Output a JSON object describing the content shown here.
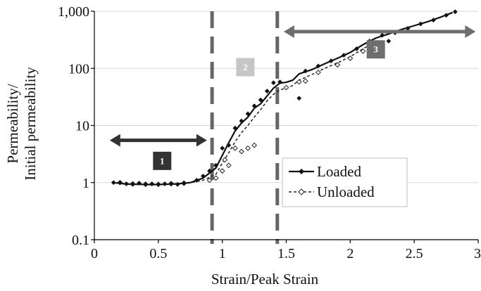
{
  "chart_data": {
    "type": "scatter",
    "title": "",
    "xlabel": "Strain/Peak Strain",
    "ylabel_lines": [
      "Permeability/",
      "Initial permeability"
    ],
    "xlim": [
      0,
      3
    ],
    "ylim": [
      0.1,
      1000
    ],
    "y_scale": "log",
    "x_ticks": [
      0,
      0.5,
      1,
      1.5,
      2,
      2.5,
      3
    ],
    "x_tick_labels": [
      "0",
      "0.5",
      "1",
      "1.5",
      "2",
      "2.5",
      "3"
    ],
    "y_ticks": [
      0.1,
      1,
      10,
      100,
      1000
    ],
    "y_tick_labels": [
      "0.1",
      "1",
      "10",
      "100",
      "1,000"
    ],
    "grid": "horizontal",
    "legend_position": "lower-right",
    "colors": {
      "loaded": "#111111",
      "unloaded": "#222222",
      "grid": "#d9d9d9",
      "divider": "#666666",
      "arrow_left": "#333333",
      "arrow_right": "#6e6e6e",
      "zone1": "#333333",
      "zone2": "#c6c6c6",
      "zone3": "#6e6e6e"
    },
    "series": [
      {
        "name": "Loaded",
        "style": "solid-line-filled-diamond",
        "line": [
          {
            "x": 0.15,
            "y": 1.0
          },
          {
            "x": 0.25,
            "y": 0.94
          },
          {
            "x": 0.35,
            "y": 0.93
          },
          {
            "x": 0.45,
            "y": 0.92
          },
          {
            "x": 0.55,
            "y": 0.93
          },
          {
            "x": 0.65,
            "y": 0.95
          },
          {
            "x": 0.75,
            "y": 1.0
          },
          {
            "x": 0.85,
            "y": 1.2
          },
          {
            "x": 0.95,
            "y": 1.8
          },
          {
            "x": 1.0,
            "y": 3.0
          },
          {
            "x": 1.05,
            "y": 5.0
          },
          {
            "x": 1.1,
            "y": 8.0
          },
          {
            "x": 1.15,
            "y": 11.0
          },
          {
            "x": 1.2,
            "y": 14.0
          },
          {
            "x": 1.25,
            "y": 20.0
          },
          {
            "x": 1.3,
            "y": 24.0
          },
          {
            "x": 1.35,
            "y": 33.0
          },
          {
            "x": 1.4,
            "y": 45.0
          },
          {
            "x": 1.45,
            "y": 55.0
          },
          {
            "x": 1.5,
            "y": 57.0
          },
          {
            "x": 1.55,
            "y": 62.0
          },
          {
            "x": 1.6,
            "y": 80.0
          },
          {
            "x": 1.7,
            "y": 95.0
          },
          {
            "x": 1.8,
            "y": 120.0
          },
          {
            "x": 1.9,
            "y": 150.0
          },
          {
            "x": 2.0,
            "y": 190.0
          },
          {
            "x": 2.1,
            "y": 260.0
          },
          {
            "x": 2.2,
            "y": 340.0
          },
          {
            "x": 2.3,
            "y": 400.0
          },
          {
            "x": 2.4,
            "y": 480.0
          },
          {
            "x": 2.5,
            "y": 560.0
          },
          {
            "x": 2.6,
            "y": 650.0
          },
          {
            "x": 2.7,
            "y": 780.0
          },
          {
            "x": 2.8,
            "y": 950.0
          }
        ],
        "points": [
          {
            "x": 0.15,
            "y": 1.0
          },
          {
            "x": 0.2,
            "y": 1.0
          },
          {
            "x": 0.25,
            "y": 0.95
          },
          {
            "x": 0.3,
            "y": 0.93
          },
          {
            "x": 0.35,
            "y": 0.98
          },
          {
            "x": 0.4,
            "y": 0.92
          },
          {
            "x": 0.45,
            "y": 0.95
          },
          {
            "x": 0.5,
            "y": 0.93
          },
          {
            "x": 0.55,
            "y": 0.95
          },
          {
            "x": 0.6,
            "y": 0.97
          },
          {
            "x": 0.65,
            "y": 0.93
          },
          {
            "x": 0.7,
            "y": 0.96
          },
          {
            "x": 0.8,
            "y": 1.1
          },
          {
            "x": 0.85,
            "y": 1.3
          },
          {
            "x": 0.9,
            "y": 1.6
          },
          {
            "x": 0.95,
            "y": 2.0
          },
          {
            "x": 1.0,
            "y": 4.0
          },
          {
            "x": 1.05,
            "y": 4.5
          },
          {
            "x": 1.1,
            "y": 9.0
          },
          {
            "x": 1.15,
            "y": 12.0
          },
          {
            "x": 1.2,
            "y": 16.0
          },
          {
            "x": 1.25,
            "y": 22.0
          },
          {
            "x": 1.3,
            "y": 28.0
          },
          {
            "x": 1.35,
            "y": 40.0
          },
          {
            "x": 1.4,
            "y": 56.0
          },
          {
            "x": 1.45,
            "y": 58.0
          },
          {
            "x": 1.6,
            "y": 30.0
          },
          {
            "x": 1.65,
            "y": 90.0
          },
          {
            "x": 1.75,
            "y": 110.0
          },
          {
            "x": 1.85,
            "y": 135.0
          },
          {
            "x": 1.95,
            "y": 170.0
          },
          {
            "x": 2.05,
            "y": 220.0
          },
          {
            "x": 2.15,
            "y": 300.0
          },
          {
            "x": 2.25,
            "y": 380.0
          },
          {
            "x": 2.3,
            "y": 300.0
          },
          {
            "x": 2.35,
            "y": 420.0
          },
          {
            "x": 2.45,
            "y": 500.0
          },
          {
            "x": 2.55,
            "y": 600.0
          },
          {
            "x": 2.65,
            "y": 700.0
          },
          {
            "x": 2.75,
            "y": 850.0
          },
          {
            "x": 2.82,
            "y": 980.0
          }
        ]
      },
      {
        "name": "Unloaded",
        "style": "dashed-line-open-diamond",
        "line": [
          {
            "x": 0.15,
            "y": 1.0
          },
          {
            "x": 0.25,
            "y": 0.95
          },
          {
            "x": 0.35,
            "y": 0.94
          },
          {
            "x": 0.45,
            "y": 0.93
          },
          {
            "x": 0.55,
            "y": 0.94
          },
          {
            "x": 0.65,
            "y": 0.96
          },
          {
            "x": 0.75,
            "y": 0.99
          },
          {
            "x": 0.85,
            "y": 1.1
          },
          {
            "x": 0.95,
            "y": 1.4
          },
          {
            "x": 1.0,
            "y": 2.2
          },
          {
            "x": 1.05,
            "y": 3.3
          },
          {
            "x": 1.1,
            "y": 5.2
          },
          {
            "x": 1.15,
            "y": 7.5
          },
          {
            "x": 1.2,
            "y": 10.0
          },
          {
            "x": 1.25,
            "y": 14.0
          },
          {
            "x": 1.3,
            "y": 19.0
          },
          {
            "x": 1.35,
            "y": 27.0
          },
          {
            "x": 1.4,
            "y": 35.0
          },
          {
            "x": 1.45,
            "y": 42.0
          },
          {
            "x": 1.5,
            "y": 45.0
          },
          {
            "x": 1.55,
            "y": 50.0
          },
          {
            "x": 1.6,
            "y": 62.0
          },
          {
            "x": 1.7,
            "y": 78.0
          },
          {
            "x": 1.8,
            "y": 100.0
          },
          {
            "x": 1.9,
            "y": 125.0
          },
          {
            "x": 2.0,
            "y": 160.0
          },
          {
            "x": 2.1,
            "y": 220.0
          },
          {
            "x": 2.2,
            "y": 300.0
          }
        ],
        "points": [
          {
            "x": 0.2,
            "y": 1.0
          },
          {
            "x": 0.3,
            "y": 0.95
          },
          {
            "x": 0.4,
            "y": 0.94
          },
          {
            "x": 0.5,
            "y": 0.93
          },
          {
            "x": 0.6,
            "y": 0.95
          },
          {
            "x": 0.7,
            "y": 0.98
          },
          {
            "x": 0.9,
            "y": 1.1
          },
          {
            "x": 0.95,
            "y": 1.2
          },
          {
            "x": 1.0,
            "y": 1.6
          },
          {
            "x": 1.02,
            "y": 2.5
          },
          {
            "x": 1.05,
            "y": 2.0
          },
          {
            "x": 1.1,
            "y": 4.0
          },
          {
            "x": 1.15,
            "y": 3.5
          },
          {
            "x": 1.2,
            "y": 4.0
          },
          {
            "x": 1.25,
            "y": 4.5
          },
          {
            "x": 1.5,
            "y": 46.0
          },
          {
            "x": 1.6,
            "y": 58.0
          },
          {
            "x": 1.65,
            "y": 60.0
          },
          {
            "x": 1.75,
            "y": 85.0
          },
          {
            "x": 1.9,
            "y": 115.0
          },
          {
            "x": 2.0,
            "y": 150.0
          },
          {
            "x": 2.1,
            "y": 200.0
          },
          {
            "x": 2.15,
            "y": 240.0
          },
          {
            "x": 2.2,
            "y": 260.0
          }
        ]
      }
    ],
    "annotations": {
      "dividers": [
        {
          "x": 0.92,
          "style": "dashed-vertical"
        },
        {
          "x": 1.43,
          "style": "dashed-vertical"
        }
      ],
      "arrows": [
        {
          "x_from": 0.12,
          "x_to": 0.88,
          "y": 5.5,
          "double_headed": true,
          "shade": "dark"
        },
        {
          "x_from": 1.48,
          "x_to": 2.98,
          "y": 440,
          "double_headed": true,
          "shade": "medium"
        }
      ],
      "zones": [
        {
          "label": "1",
          "x": 0.53,
          "y": 2.4
        },
        {
          "label": "2",
          "x": 1.18,
          "y": 105
        },
        {
          "label": "3",
          "x": 2.2,
          "y": 215
        }
      ]
    }
  }
}
